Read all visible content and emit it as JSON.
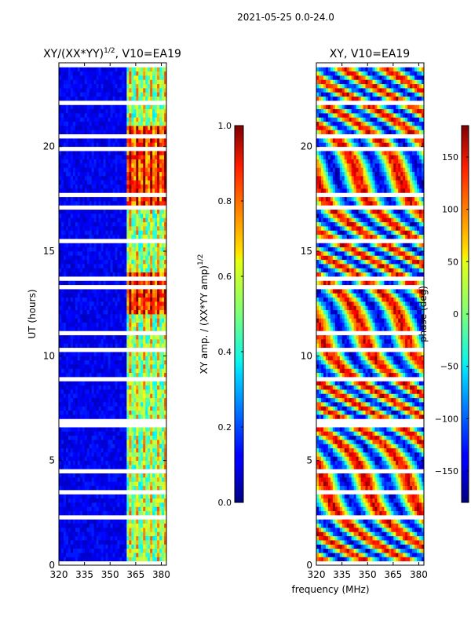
{
  "figure": {
    "suptitle": "2021-05-25 0.0-24.0",
    "xlabel": "frequency (MHz)"
  },
  "chart_data": [
    {
      "type": "heatmap",
      "title": "XY/(XX*YY)",
      "title_sup": "1/2",
      "title_suffix": ", V10=EA19",
      "xlabel": "frequency (MHz)",
      "ylabel": "UT (hours)",
      "xlim": [
        320,
        383
      ],
      "ylim": [
        0,
        24
      ],
      "xticks": [
        320,
        335,
        350,
        365,
        380
      ],
      "yticks": [
        0,
        5,
        10,
        15,
        20
      ],
      "colorbar": {
        "label": "XY amp. / (XX*YY amp)",
        "label_sup": "1/2",
        "range": [
          0.0,
          1.0
        ],
        "ticks": [
          0.0,
          0.2,
          0.4,
          0.6,
          0.8,
          1.0
        ],
        "tick_labels": [
          "0.0",
          "0.2",
          "0.4",
          "0.6",
          "0.8",
          "1.0"
        ],
        "colormap": "jet"
      },
      "bands": [
        {
          "from": 360,
          "to": 383,
          "level": "high"
        },
        {
          "from": 320,
          "to": 360,
          "level": "low"
        }
      ]
    },
    {
      "type": "heatmap",
      "title": "XY, V10=EA19",
      "xlim": [
        320,
        383
      ],
      "ylim": [
        0,
        24
      ],
      "xticks": [
        320,
        335,
        350,
        365,
        380
      ],
      "yticks": [
        0,
        5,
        10,
        15,
        20
      ],
      "colorbar": {
        "label": "phase (deg)",
        "range": [
          -180,
          180
        ],
        "ticks": [
          -150,
          -100,
          -50,
          0,
          50,
          100,
          150
        ],
        "tick_labels": [
          "−150",
          "−100",
          "−50",
          "0",
          "50",
          "100",
          "150"
        ],
        "colormap": "jet"
      }
    }
  ]
}
